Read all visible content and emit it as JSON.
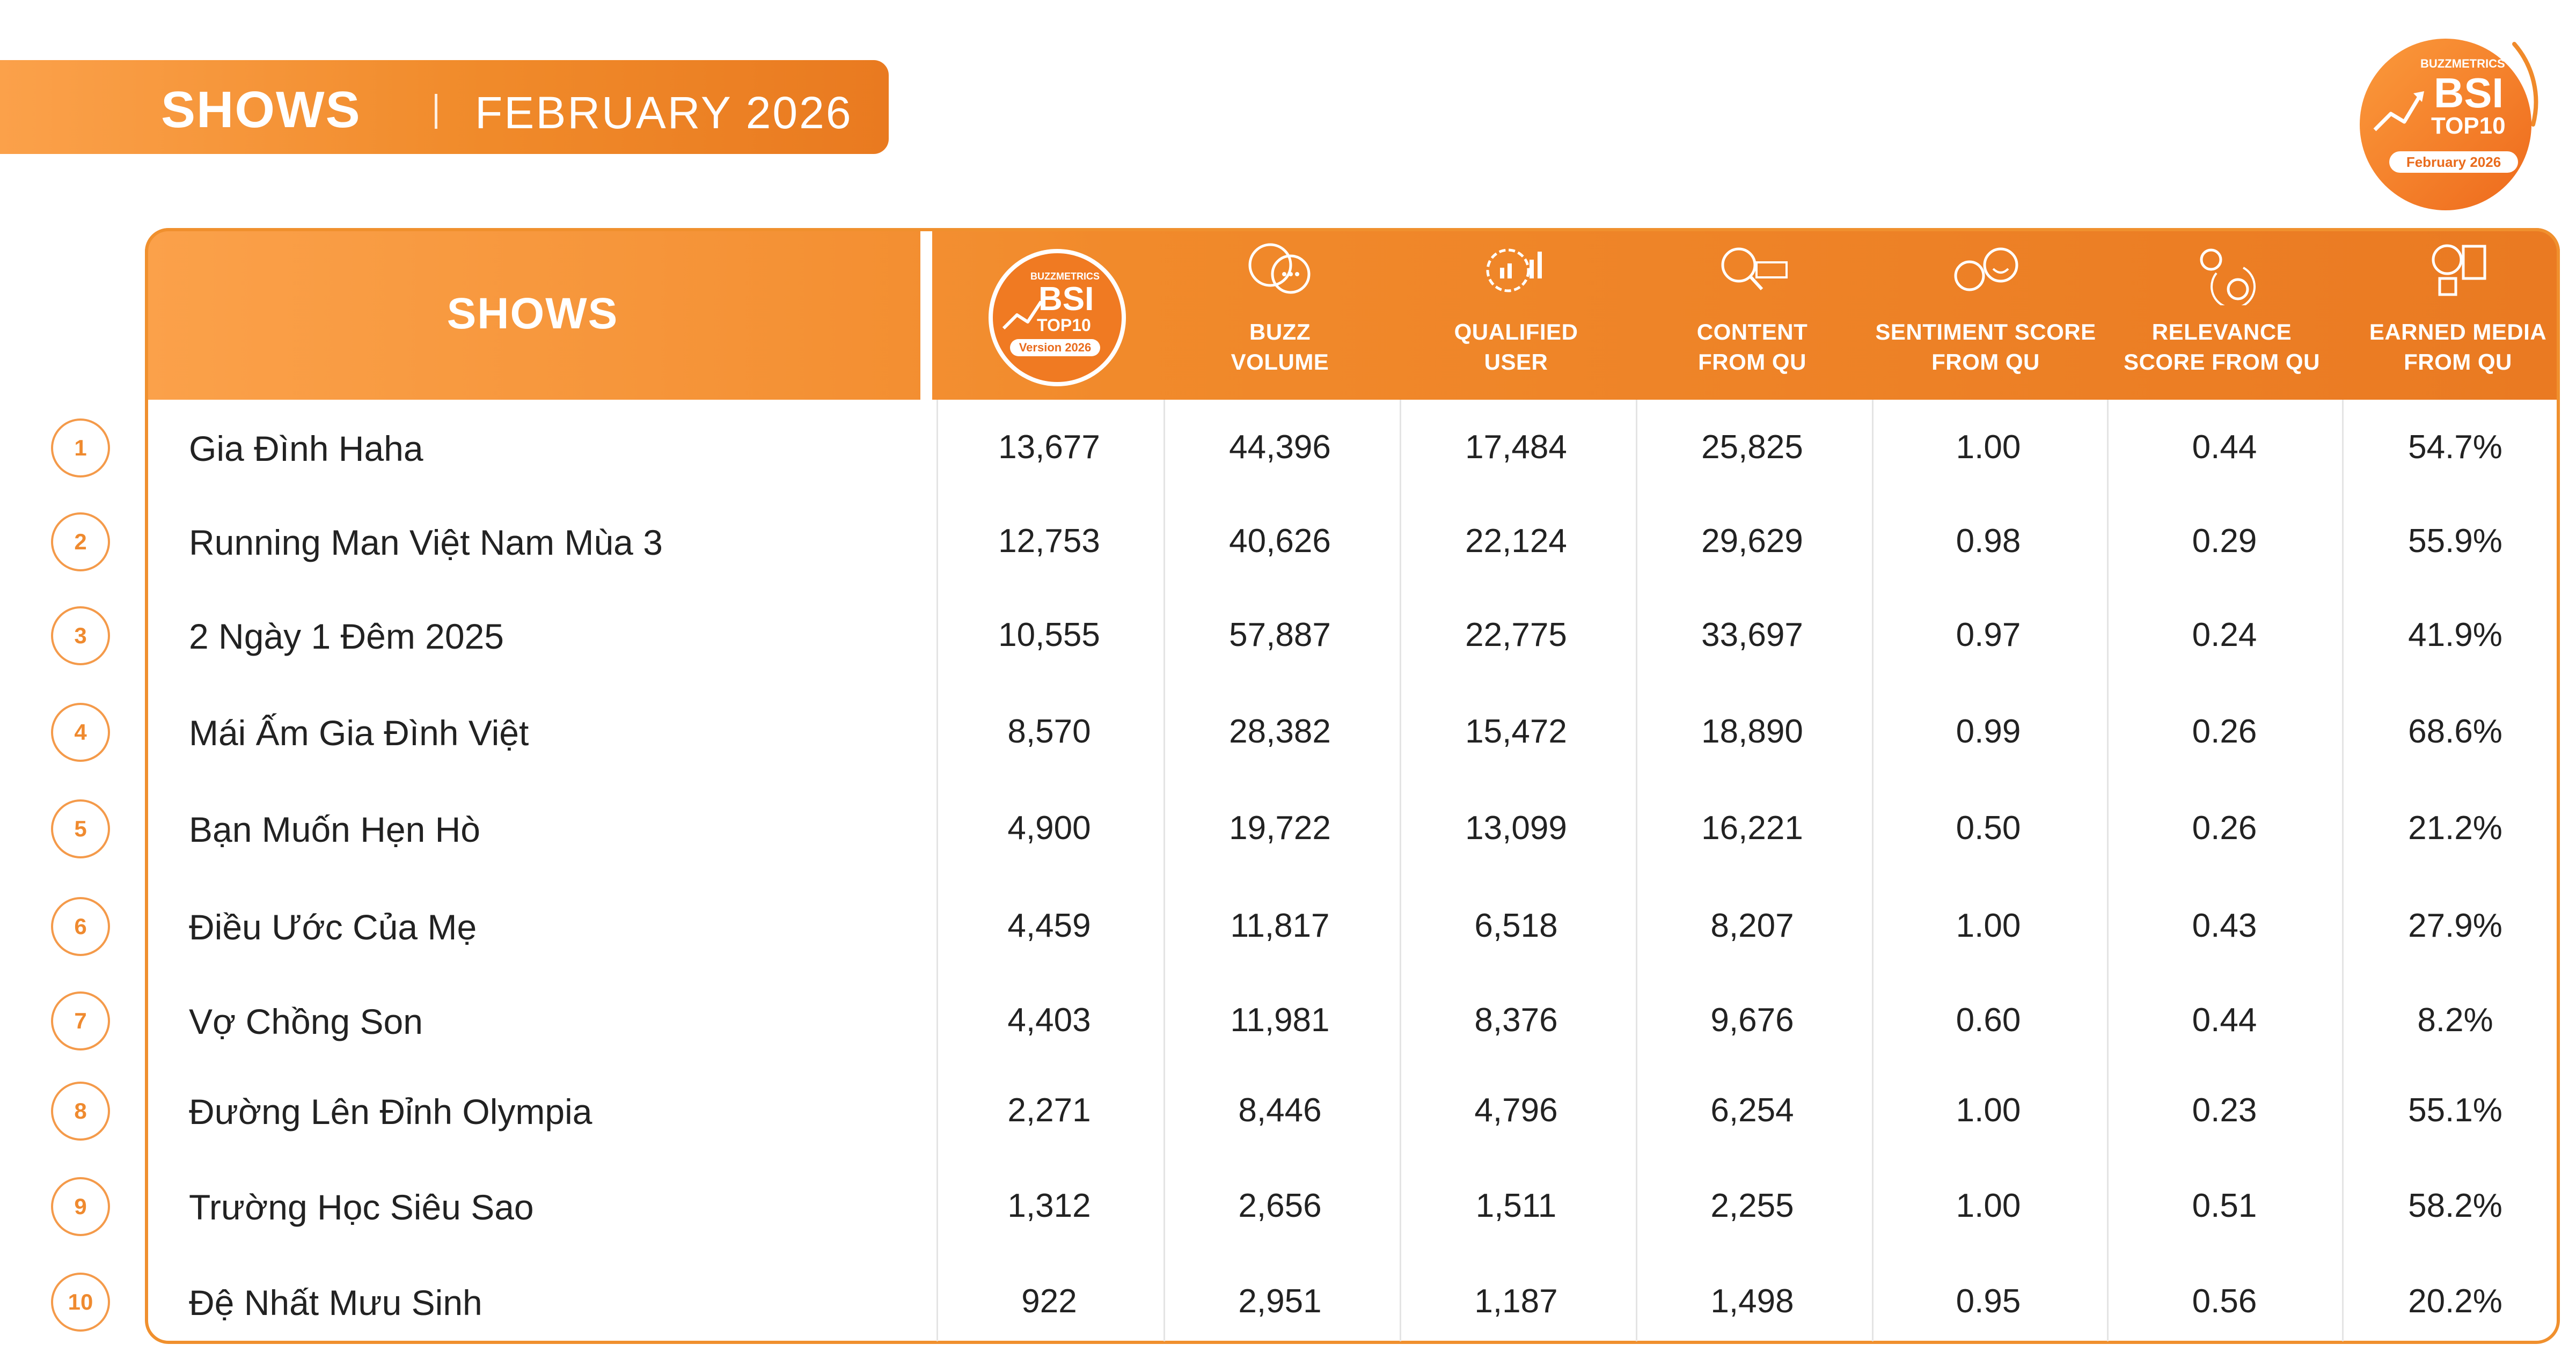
{
  "banner": {
    "title": "SHOWS",
    "subtitle": "FEBRUARY 2026"
  },
  "logo": {
    "brand": "BUZZMETRICS",
    "bsi": "BSI",
    "top10": "TOP10",
    "date": "February 2026"
  },
  "colors": {
    "accent": "#f08a2a",
    "accent_light": "#fba14a",
    "rank": "#ef8a2f",
    "text": "#222222"
  },
  "table": {
    "shows_header": "SHOWS",
    "bsi_badge": {
      "brand": "BUZZMETRICS",
      "bsi": "BSI",
      "top10": "TOP10",
      "version": "Version 2026"
    },
    "columns": [
      {
        "label": "BUZZ\nVOLUME",
        "icon": "chat-bubbles-icon"
      },
      {
        "label": "QUALIFIED\nUSER",
        "icon": "gear-chart-icon"
      },
      {
        "label": "CONTENT\nFROM QU",
        "icon": "search-content-icon"
      },
      {
        "label": "SENTIMENT SCORE\nFROM QU",
        "icon": "emoji-faces-icon"
      },
      {
        "label": "RELEVANCE\nSCORE FROM QU",
        "icon": "bulb-coin-icon"
      },
      {
        "label": "EARNED MEDIA\nFROM QU",
        "icon": "media-icon"
      }
    ],
    "rows": [
      {
        "rank": "1",
        "name": "Gia Đình Haha",
        "bsi": "13,677",
        "buzz": "44,396",
        "qu": "17,484",
        "content": "25,825",
        "sentiment": "1.00",
        "relevance": "0.44",
        "earned": "54.7%"
      },
      {
        "rank": "2",
        "name": "Running Man Việt Nam Mùa 3",
        "bsi": "12,753",
        "buzz": "40,626",
        "qu": "22,124",
        "content": "29,629",
        "sentiment": "0.98",
        "relevance": "0.29",
        "earned": "55.9%"
      },
      {
        "rank": "3",
        "name": "2 Ngày 1 Đêm 2025",
        "bsi": "10,555",
        "buzz": "57,887",
        "qu": "22,775",
        "content": "33,697",
        "sentiment": "0.97",
        "relevance": "0.24",
        "earned": "41.9%"
      },
      {
        "rank": "4",
        "name": "Mái Ấm Gia Đình Việt",
        "bsi": "8,570",
        "buzz": "28,382",
        "qu": "15,472",
        "content": "18,890",
        "sentiment": "0.99",
        "relevance": "0.26",
        "earned": "68.6%"
      },
      {
        "rank": "5",
        "name": "Bạn Muốn Hẹn Hò",
        "bsi": "4,900",
        "buzz": "19,722",
        "qu": "13,099",
        "content": "16,221",
        "sentiment": "0.50",
        "relevance": "0.26",
        "earned": "21.2%"
      },
      {
        "rank": "6",
        "name": "Điều Ước Của Mẹ",
        "bsi": "4,459",
        "buzz": "11,817",
        "qu": "6,518",
        "content": "8,207",
        "sentiment": "1.00",
        "relevance": "0.43",
        "earned": "27.9%"
      },
      {
        "rank": "7",
        "name": "Vợ Chồng Son",
        "bsi": "4,403",
        "buzz": "11,981",
        "qu": "8,376",
        "content": "9,676",
        "sentiment": "0.60",
        "relevance": "0.44",
        "earned": "8.2%"
      },
      {
        "rank": "8",
        "name": "Đường Lên Đỉnh Olympia",
        "bsi": "2,271",
        "buzz": "8,446",
        "qu": "4,796",
        "content": "6,254",
        "sentiment": "1.00",
        "relevance": "0.23",
        "earned": "55.1%"
      },
      {
        "rank": "9",
        "name": "Trường Học Siêu Sao",
        "bsi": "1,312",
        "buzz": "2,656",
        "qu": "1,511",
        "content": "2,255",
        "sentiment": "1.00",
        "relevance": "0.51",
        "earned": "58.2%"
      },
      {
        "rank": "10",
        "name": "Đệ Nhất Mưu Sinh",
        "bsi": "922",
        "buzz": "2,951",
        "qu": "1,187",
        "content": "1,498",
        "sentiment": "0.95",
        "relevance": "0.56",
        "earned": "20.2%"
      }
    ]
  }
}
